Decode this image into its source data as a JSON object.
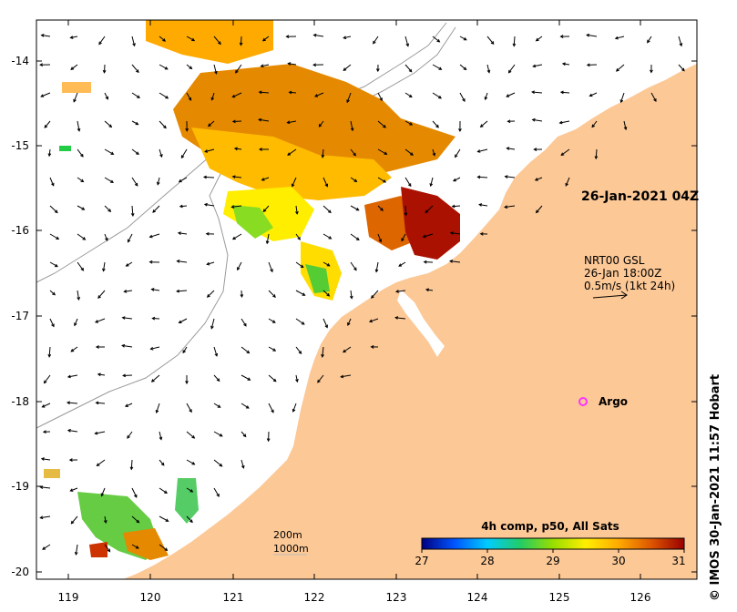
{
  "map": {
    "longitudes": [
      "119",
      "120",
      "121",
      "122",
      "123",
      "124",
      "125",
      "126"
    ],
    "latitudes": [
      "-14",
      "-15",
      "-16",
      "-17",
      "-18",
      "-19",
      "-20"
    ],
    "date_label": "26-Jan-2021 04Z",
    "current_model": {
      "line1": "NRT00 GSL",
      "line2": "26-Jan 18:00Z",
      "line3": "0.5m/s (1kt 24h)"
    },
    "argo_label": "Argo",
    "depth_contours": [
      "200m",
      "1000m"
    ],
    "credit": "IMOS 30-Jan-2021 11:57 Hobart",
    "credit_symbol": "©"
  },
  "colorbar": {
    "title": "4h comp, p50, All Sats",
    "ticks": [
      "27",
      "28",
      "29",
      "30",
      "31"
    ],
    "stops": [
      "#000080",
      "#0055ff",
      "#00ccff",
      "#22cc66",
      "#99dd00",
      "#ffee00",
      "#ffaa00",
      "#dd5500",
      "#990000"
    ]
  },
  "colors": {
    "land": "#fcc896",
    "argo": "#ff33ff",
    "vector": "#000000",
    "contour": "#9a9a9a"
  }
}
